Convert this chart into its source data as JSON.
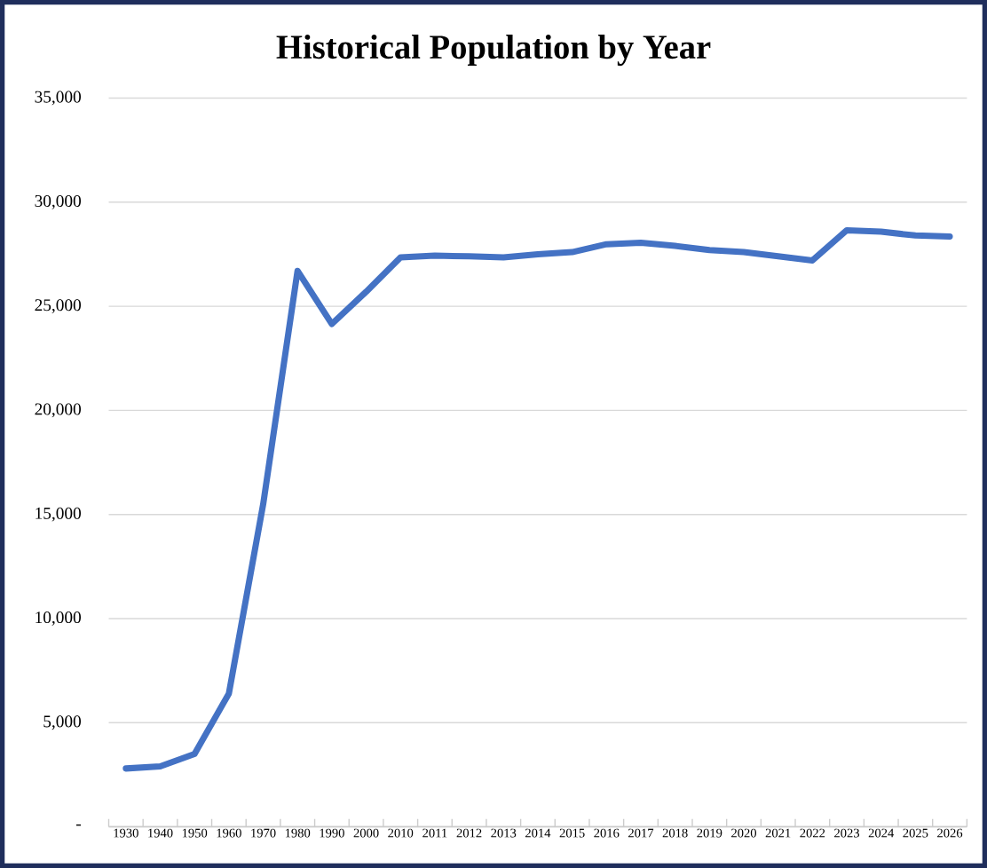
{
  "chart_data": {
    "type": "line",
    "title": "Historical Population by Year",
    "categories": [
      "1930",
      "1940",
      "1950",
      "1960",
      "1970",
      "1980",
      "1990",
      "2000",
      "2010",
      "2011",
      "2012",
      "2013",
      "2014",
      "2015",
      "2016",
      "2017",
      "2018",
      "2019",
      "2020",
      "2021",
      "2022",
      "2023",
      "2024",
      "2025",
      "2026"
    ],
    "series": [
      {
        "color": "#4472c4",
        "values": [
          2800,
          2900,
          3500,
          6400,
          15500,
          26700,
          24150,
          25700,
          27350,
          27430,
          27400,
          27350,
          27500,
          27600,
          27980,
          28050,
          27900,
          27700,
          27600,
          27400,
          27200,
          28650,
          28580,
          28400,
          28350
        ]
      }
    ],
    "ylim": [
      0,
      35000
    ],
    "yticks": [
      {
        "value": 0,
        "label": "-"
      },
      {
        "value": 5000,
        "label": "5,000"
      },
      {
        "value": 10000,
        "label": "10,000"
      },
      {
        "value": 15000,
        "label": "15,000"
      },
      {
        "value": 20000,
        "label": "20,000"
      },
      {
        "value": 25000,
        "label": "25,000"
      },
      {
        "value": 30000,
        "label": "30,000"
      },
      {
        "value": 35000,
        "label": "35,000"
      }
    ],
    "grid": "y",
    "marker": "none",
    "line_style": "solid"
  }
}
